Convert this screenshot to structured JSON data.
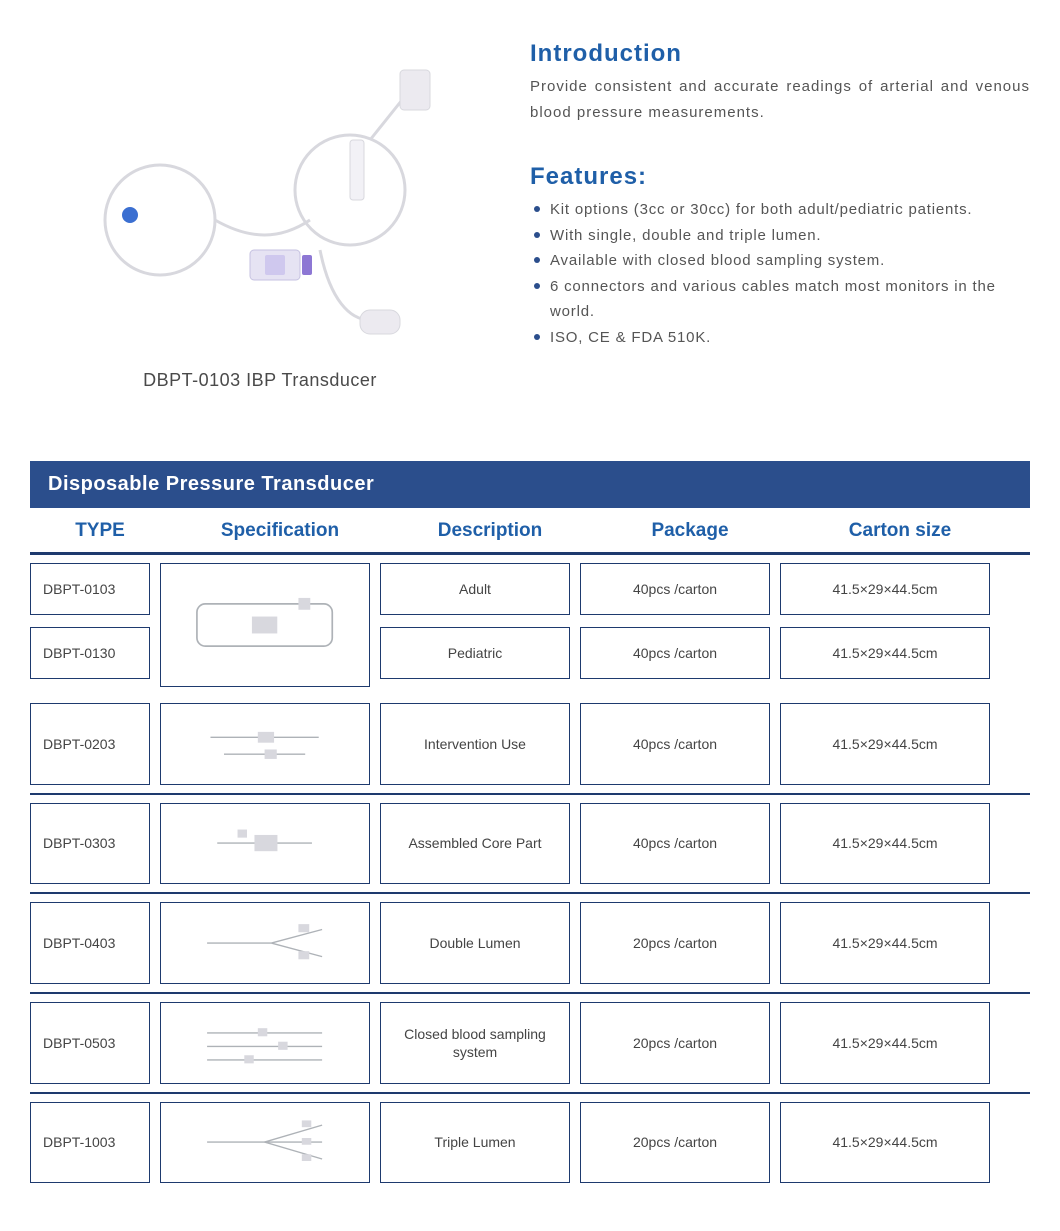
{
  "colors": {
    "brand_blue": "#1f5fa8",
    "title_blue": "#1f5fa8",
    "header_bar": "#2b4e8c",
    "divider": "#1e3a6e",
    "cell_border": "#1e3a6e",
    "bullet": "#2b4e8c",
    "text_body": "#555555",
    "caption": "#4a4a4a"
  },
  "product": {
    "caption": "DBPT-0103 IBP Transducer"
  },
  "intro": {
    "heading": "Introduction",
    "text": "Provide consistent and accurate readings of arterial and venous blood pressure measurements."
  },
  "features": {
    "heading": "Features:",
    "items": [
      "Kit options (3cc or 30cc) for both adult/pediatric patients.",
      "With single, double and triple lumen.",
      "Available with closed blood sampling system.",
      "6 connectors and various cables match most monitors in the world.",
      "ISO, CE & FDA 510K."
    ]
  },
  "table": {
    "title": "Disposable Pressure Transducer",
    "headers": {
      "type": "TYPE",
      "spec": "Specification",
      "desc": "Description",
      "pkg": "Package",
      "size": "Carton  size"
    },
    "merged_first_two": true,
    "rows": [
      {
        "type": "DBPT-0103",
        "desc": "Adult",
        "pkg": "40pcs /carton",
        "size": "41.5×29×44.5cm"
      },
      {
        "type": "DBPT-0130",
        "desc": "Pediatric",
        "pkg": "40pcs /carton",
        "size": "41.5×29×44.5cm"
      },
      {
        "type": "DBPT-0203",
        "desc": "Intervention Use",
        "pkg": "40pcs /carton",
        "size": "41.5×29×44.5cm"
      },
      {
        "type": "DBPT-0303",
        "desc": "Assembled Core Part",
        "pkg": "40pcs /carton",
        "size": "41.5×29×44.5cm"
      },
      {
        "type": "DBPT-0403",
        "desc": "Double Lumen",
        "pkg": "20pcs /carton",
        "size": "41.5×29×44.5cm"
      },
      {
        "type": "DBPT-0503",
        "desc": "Closed blood sampling system",
        "pkg": "20pcs /carton",
        "size": "41.5×29×44.5cm"
      },
      {
        "type": "DBPT-1003",
        "desc": "Triple Lumen",
        "pkg": "20pcs /carton",
        "size": "41.5×29×44.5cm"
      }
    ]
  }
}
